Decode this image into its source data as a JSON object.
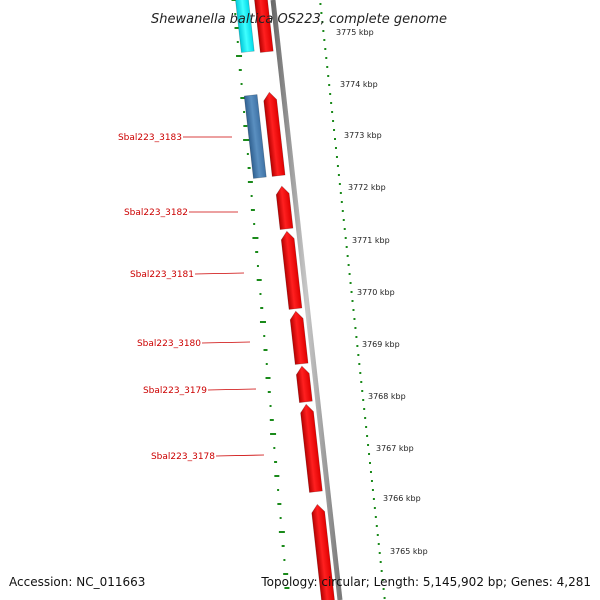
{
  "title": "Shewanella baltica OS223, complete genome",
  "accession": "Accession: NC_011663",
  "topology": "Topology: circular; Length: 5,145,902 bp; Genes: 4,281",
  "kbp_labels": [
    "3775 kbp",
    "3774 kbp",
    "3773 kbp",
    "3772 kbp",
    "3771 kbp",
    "3770 kbp",
    "3769 kbp",
    "3768 kbp",
    "3767 kbp",
    "3766 kbp",
    "3765 kbp"
  ],
  "gene_labels": [
    "Sbal223_3183",
    "Sbal223_3182",
    "Sbal223_3181",
    "Sbal223_3180",
    "Sbal223_3179",
    "Sbal223_3178"
  ],
  "colors": {
    "forward_gene": "#ff0000",
    "reverse_gene": "#4a7fb0",
    "highlight_gene": "#00e5f0",
    "label": "#cc0000",
    "gc_ticks": "#1a8a1a",
    "backbone": "#8a8a8a"
  }
}
